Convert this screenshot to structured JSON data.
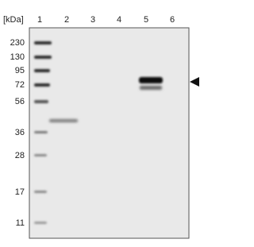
{
  "header": {
    "unit_label": "[kDa]"
  },
  "lanes": [
    "1",
    "2",
    "3",
    "4",
    "5",
    "6"
  ],
  "markers": [
    "230",
    "130",
    "95",
    "72",
    "56",
    "36",
    "28",
    "17",
    "11"
  ]
}
